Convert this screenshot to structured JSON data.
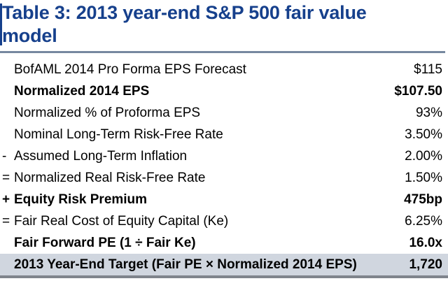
{
  "title_lines": [
    "Table 3: 2013 year-end S&P 500 fair value",
    "model"
  ],
  "colors": {
    "title_navy": "#16408c",
    "rule_steel_blue": "#76889f",
    "highlight_row_bg": "#d0d6df",
    "bottom_edge_grey": "#7f848c",
    "body_text": "#000000"
  },
  "chart_data": {
    "type": "table",
    "title": "Table 3: 2013 year-end S&P 500 fair value model",
    "columns": [
      "operator",
      "item",
      "value"
    ],
    "rows": [
      {
        "prefix": "",
        "label": "BofAML 2014 Pro Forma EPS Forecast",
        "value": "$115",
        "bold": false,
        "highlight": false
      },
      {
        "prefix": "",
        "label": "Normalized 2014 EPS",
        "value": "$107.50",
        "bold": true,
        "highlight": false
      },
      {
        "prefix": "",
        "label": "Normalized % of Proforma EPS",
        "value": "93%",
        "bold": false,
        "highlight": false
      },
      {
        "prefix": "",
        "label": "Nominal Long-Term Risk-Free Rate",
        "value": "3.50%",
        "bold": false,
        "highlight": false
      },
      {
        "prefix": "-",
        "label": "Assumed Long-Term Inflation",
        "value": "2.00%",
        "bold": false,
        "highlight": false
      },
      {
        "prefix": "=",
        "label": "Normalized Real Risk-Free Rate",
        "value": "1.50%",
        "bold": false,
        "highlight": false
      },
      {
        "prefix": "+",
        "label": "Equity Risk Premium",
        "value": "475bp",
        "bold": true,
        "highlight": false
      },
      {
        "prefix": "=",
        "label": "Fair Real Cost of Equity Capital (Ke)",
        "value": "6.25%",
        "bold": false,
        "highlight": false
      },
      {
        "prefix": "",
        "label": "Fair Forward PE (1 ÷ Fair Ke)",
        "value": "16.0x",
        "bold": true,
        "highlight": false
      },
      {
        "prefix": "",
        "label": "2013 Year-End Target (Fair PE × Normalized 2014 EPS)",
        "value": "1,720",
        "bold": true,
        "highlight": true
      }
    ]
  }
}
